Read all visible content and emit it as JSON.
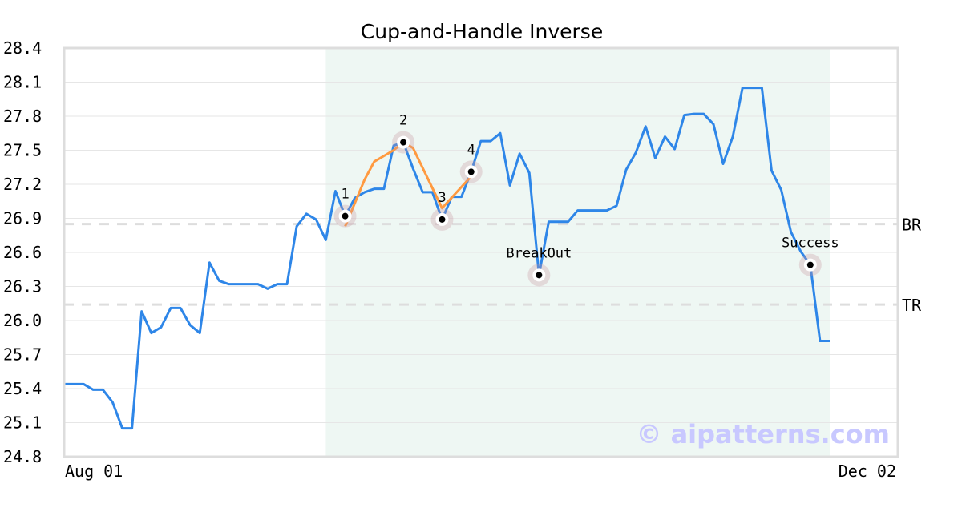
{
  "chart_data": {
    "type": "line",
    "title": "Cup-and-Handle Inverse",
    "xlabel": "",
    "ylabel": "",
    "x_tick_labels": [
      "Aug 01",
      "Dec 02"
    ],
    "ylim": [
      24.8,
      28.4
    ],
    "y_ticks": [
      24.8,
      25.1,
      25.4,
      25.7,
      26.0,
      26.3,
      26.6,
      26.9,
      27.2,
      27.5,
      27.8,
      28.1,
      28.4
    ],
    "grid": true,
    "series": [
      {
        "color": "#2e86e8",
        "values": [
          25.44,
          25.44,
          25.44,
          25.39,
          25.39,
          25.28,
          25.05,
          25.05,
          26.08,
          25.89,
          25.94,
          26.11,
          26.11,
          25.96,
          25.89,
          26.51,
          26.35,
          26.32,
          26.32,
          26.32,
          26.32,
          26.28,
          26.32,
          26.32,
          26.83,
          26.94,
          26.89,
          26.71,
          27.14,
          26.92,
          27.08,
          27.13,
          27.16,
          27.16,
          27.54,
          27.57,
          27.34,
          27.13,
          27.13,
          26.89,
          27.09,
          27.09,
          27.31,
          27.58,
          27.58,
          27.65,
          27.19,
          27.47,
          27.3,
          26.4,
          26.87,
          26.87,
          26.87,
          26.97,
          26.97,
          26.97,
          26.97,
          27.01,
          27.33,
          27.48,
          27.71,
          27.43,
          27.62,
          27.51,
          27.81,
          27.82,
          27.82,
          27.73,
          27.38,
          27.62,
          28.05,
          28.05,
          28.05,
          27.32,
          27.15,
          26.78,
          26.61,
          26.49,
          25.82,
          25.82
        ]
      },
      {
        "color": "#ff9a40",
        "points": [
          [
            29,
            26.83
          ],
          [
            31,
            27.24
          ],
          [
            32,
            27.4
          ],
          [
            34,
            27.5
          ],
          [
            35,
            27.57
          ],
          [
            36,
            27.52
          ],
          [
            39,
            26.99
          ],
          [
            42,
            27.27
          ]
        ]
      }
    ],
    "highlight_range": {
      "from_index": 27,
      "to_index": 79,
      "color": "#eef7f3"
    },
    "levels": [
      {
        "label": "BR",
        "value": 26.85
      },
      {
        "label": "TR",
        "value": 26.14
      }
    ],
    "annotations": [
      {
        "label": "1",
        "index": 29
      },
      {
        "label": "2",
        "index": 35
      },
      {
        "label": "3",
        "index": 39
      },
      {
        "label": "4",
        "index": 42
      },
      {
        "label": "BreakOut",
        "index": 49
      },
      {
        "label": "Success",
        "index": 77
      }
    ],
    "watermark": {
      "text": "© aipatterns.com",
      "color": "#c8c8ff"
    }
  }
}
